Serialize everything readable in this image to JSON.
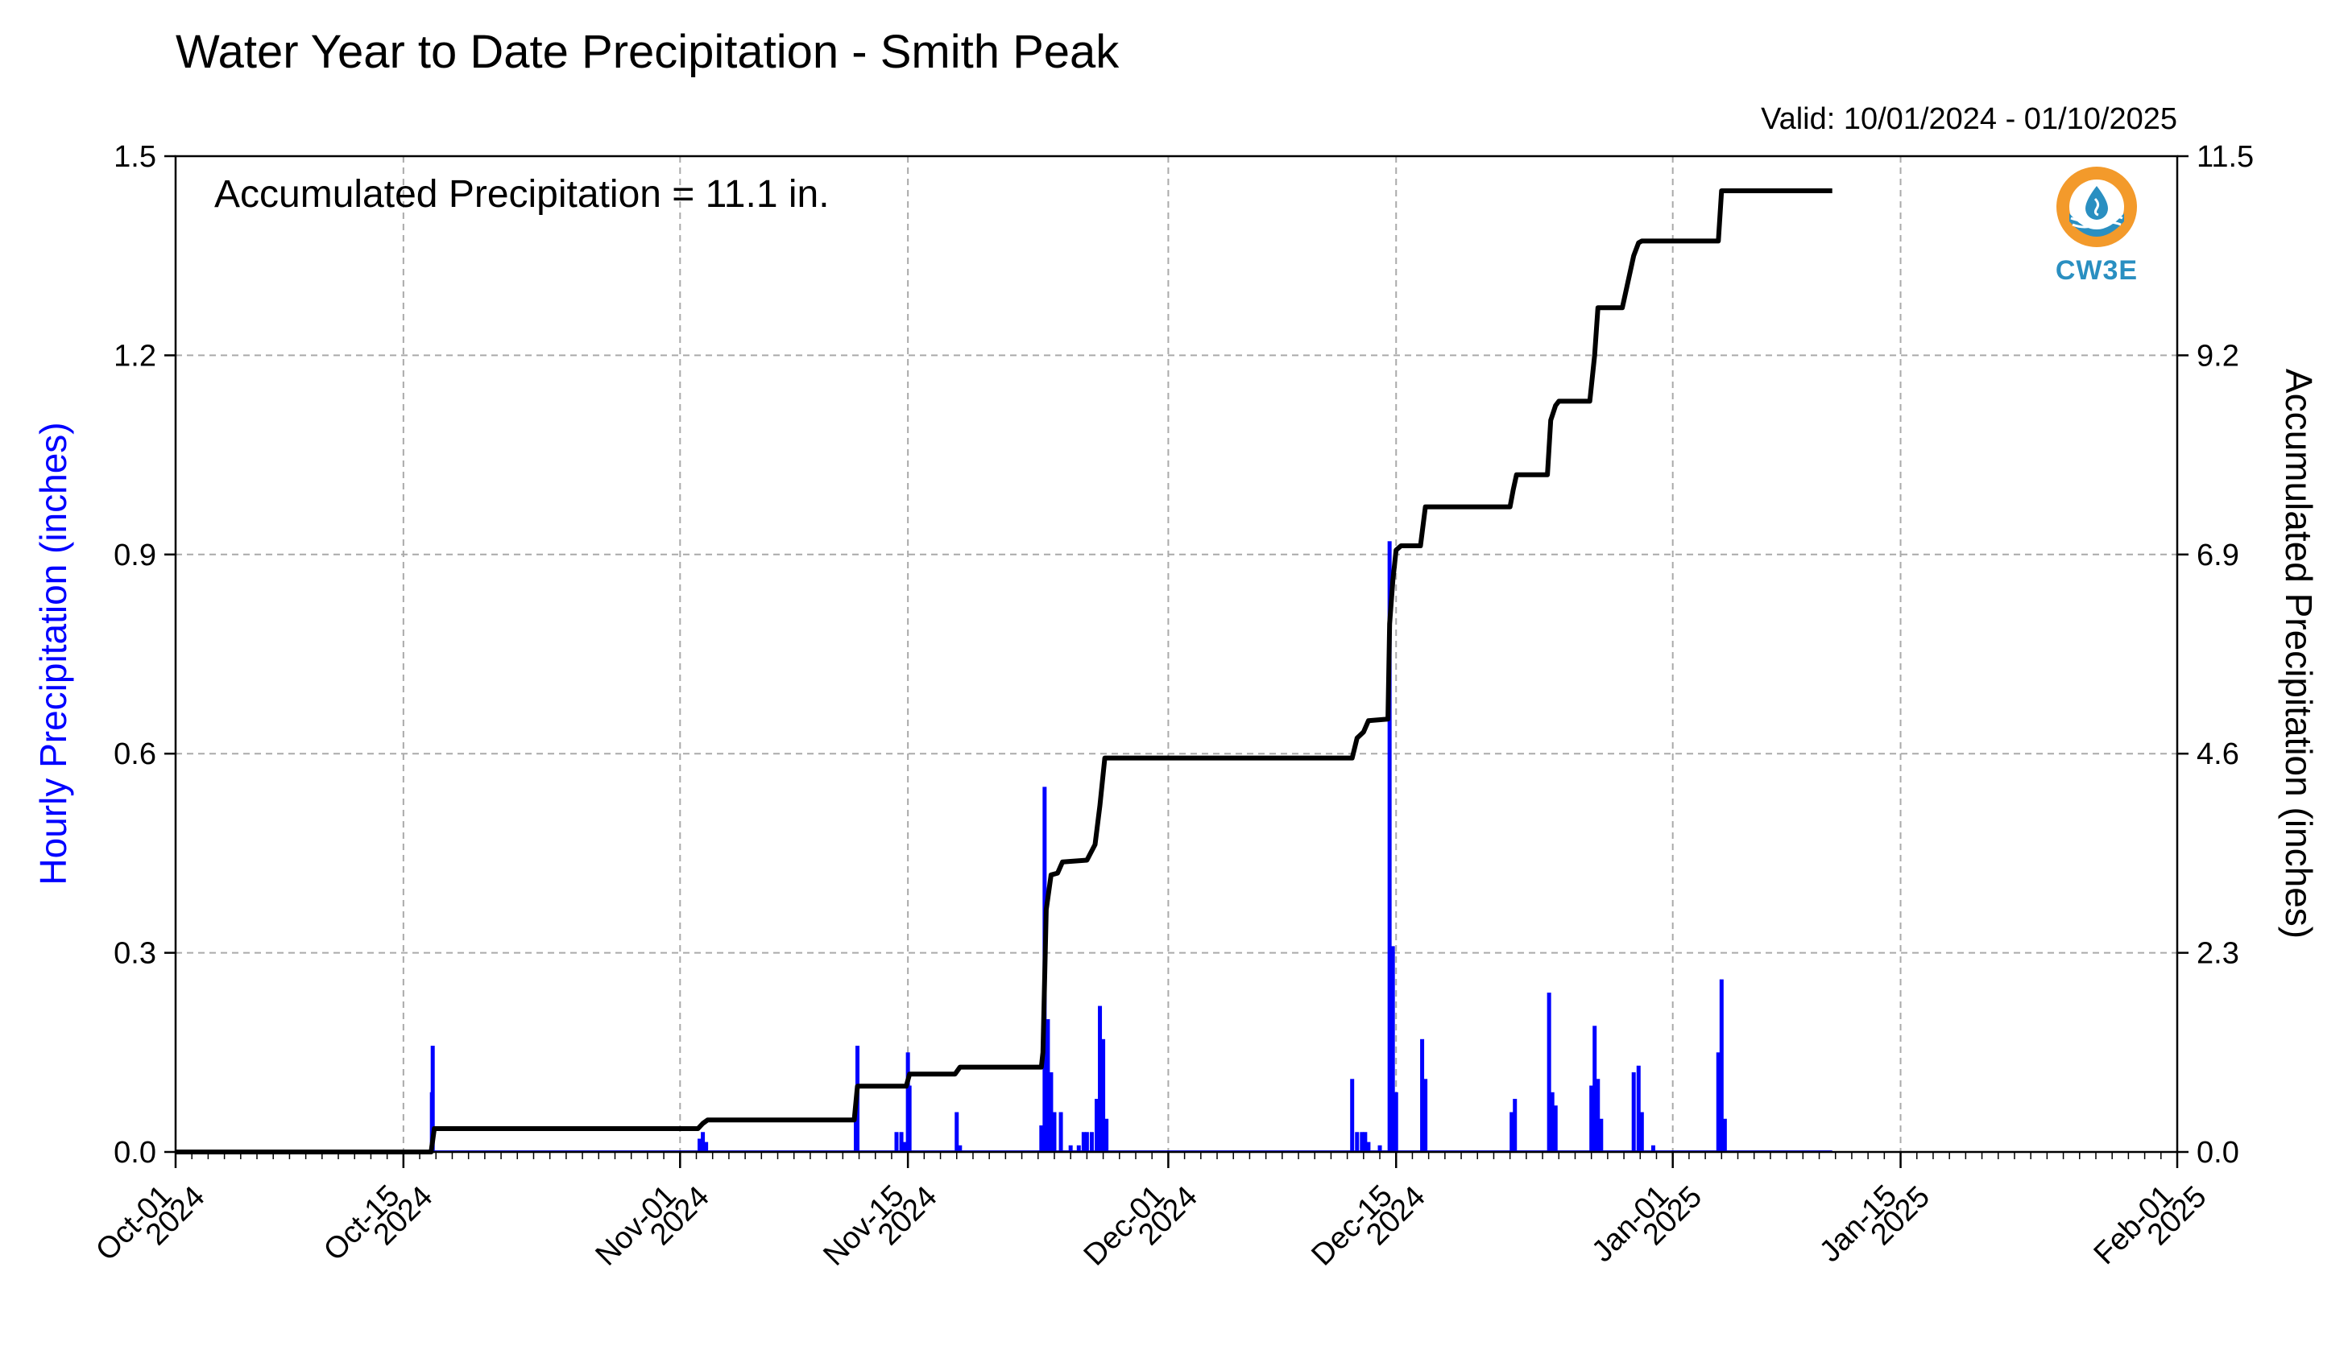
{
  "chart_data": {
    "type": "bar",
    "title": "Water Year to Date Precipitation - Smith Peak",
    "valid_text": "Valid: 10/01/2024 - 01/10/2025",
    "annotation": "Accumulated Precipitation = 11.1 in.",
    "ylabel_left": "Hourly Precipitation (inches)",
    "ylabel_right": "Accumulated Precipitation (inches)",
    "ylim_left": [
      0,
      1.5
    ],
    "ylim_right": [
      0,
      11.5
    ],
    "yticks_left": [
      "0.0",
      "0.3",
      "0.6",
      "0.9",
      "1.2",
      "1.5"
    ],
    "yticks_right": [
      "0.0",
      "2.3",
      "4.6",
      "6.9",
      "9.2",
      "11.5"
    ],
    "xlim_days": [
      0,
      123
    ],
    "xticks": [
      {
        "day": 0,
        "line1": "Oct-01",
        "line2": "2024"
      },
      {
        "day": 14,
        "line1": "Oct-15",
        "line2": "2024"
      },
      {
        "day": 31,
        "line1": "Nov-01",
        "line2": "2024"
      },
      {
        "day": 45,
        "line1": "Nov-15",
        "line2": "2024"
      },
      {
        "day": 61,
        "line1": "Dec-01",
        "line2": "2024"
      },
      {
        "day": 75,
        "line1": "Dec-15",
        "line2": "2024"
      },
      {
        "day": 92,
        "line1": "Jan-01",
        "line2": "2025"
      },
      {
        "day": 106,
        "line1": "Jan-15",
        "line2": "2025"
      },
      {
        "day": 123,
        "line1": "Feb-01",
        "line2": "2025"
      }
    ],
    "grid": true,
    "series": [
      {
        "kind": "bar",
        "color": "#0000ff",
        "points": [
          {
            "day": 15.8,
            "value": 0.16
          },
          {
            "day": 15.75,
            "value": 0.09
          },
          {
            "day": 32.2,
            "value": 0.02
          },
          {
            "day": 32.4,
            "value": 0.03
          },
          {
            "day": 32.6,
            "value": 0.015
          },
          {
            "day": 41.9,
            "value": 0.16
          },
          {
            "day": 41.8,
            "value": 0.08
          },
          {
            "day": 44.3,
            "value": 0.03
          },
          {
            "day": 44.6,
            "value": 0.03
          },
          {
            "day": 44.8,
            "value": 0.015
          },
          {
            "day": 45.0,
            "value": 0.15
          },
          {
            "day": 45.1,
            "value": 0.1
          },
          {
            "day": 48.0,
            "value": 0.06
          },
          {
            "day": 48.2,
            "value": 0.01
          },
          {
            "day": 53.2,
            "value": 0.04
          },
          {
            "day": 53.4,
            "value": 0.55
          },
          {
            "day": 53.6,
            "value": 0.2
          },
          {
            "day": 53.8,
            "value": 0.12
          },
          {
            "day": 54.0,
            "value": 0.06
          },
          {
            "day": 54.4,
            "value": 0.06
          },
          {
            "day": 55.0,
            "value": 0.01
          },
          {
            "day": 55.5,
            "value": 0.01
          },
          {
            "day": 55.8,
            "value": 0.03
          },
          {
            "day": 56.0,
            "value": 0.03
          },
          {
            "day": 56.3,
            "value": 0.03
          },
          {
            "day": 56.6,
            "value": 0.08
          },
          {
            "day": 56.8,
            "value": 0.22
          },
          {
            "day": 57.0,
            "value": 0.17
          },
          {
            "day": 57.2,
            "value": 0.05
          },
          {
            "day": 72.3,
            "value": 0.11
          },
          {
            "day": 72.6,
            "value": 0.03
          },
          {
            "day": 72.9,
            "value": 0.03
          },
          {
            "day": 73.1,
            "value": 0.03
          },
          {
            "day": 73.3,
            "value": 0.015
          },
          {
            "day": 74.0,
            "value": 0.01
          },
          {
            "day": 74.6,
            "value": 0.92
          },
          {
            "day": 74.8,
            "value": 0.31
          },
          {
            "day": 75.0,
            "value": 0.09
          },
          {
            "day": 76.6,
            "value": 0.17
          },
          {
            "day": 76.8,
            "value": 0.11
          },
          {
            "day": 82.1,
            "value": 0.06
          },
          {
            "day": 82.3,
            "value": 0.08
          },
          {
            "day": 84.4,
            "value": 0.24
          },
          {
            "day": 84.6,
            "value": 0.09
          },
          {
            "day": 84.8,
            "value": 0.07
          },
          {
            "day": 87.0,
            "value": 0.1
          },
          {
            "day": 87.2,
            "value": 0.19
          },
          {
            "day": 87.4,
            "value": 0.11
          },
          {
            "day": 87.6,
            "value": 0.05
          },
          {
            "day": 89.6,
            "value": 0.12
          },
          {
            "day": 89.9,
            "value": 0.13
          },
          {
            "day": 90.1,
            "value": 0.06
          },
          {
            "day": 90.8,
            "value": 0.01
          },
          {
            "day": 94.8,
            "value": 0.15
          },
          {
            "day": 95.0,
            "value": 0.26
          },
          {
            "day": 95.2,
            "value": 0.05
          }
        ]
      },
      {
        "kind": "line",
        "color": "#000000",
        "points": [
          {
            "day": 0,
            "value": 0
          },
          {
            "day": 15.7,
            "value": 0
          },
          {
            "day": 15.9,
            "value": 0.27
          },
          {
            "day": 32.1,
            "value": 0.27
          },
          {
            "day": 32.4,
            "value": 0.33
          },
          {
            "day": 32.7,
            "value": 0.37
          },
          {
            "day": 41.7,
            "value": 0.37
          },
          {
            "day": 41.9,
            "value": 0.76
          },
          {
            "day": 44.9,
            "value": 0.76
          },
          {
            "day": 45.1,
            "value": 0.9
          },
          {
            "day": 47.9,
            "value": 0.9
          },
          {
            "day": 48.2,
            "value": 0.98
          },
          {
            "day": 53.2,
            "value": 0.98
          },
          {
            "day": 53.3,
            "value": 1.15
          },
          {
            "day": 53.5,
            "value": 2.8
          },
          {
            "day": 53.8,
            "value": 3.2
          },
          {
            "day": 54.2,
            "value": 3.22
          },
          {
            "day": 54.5,
            "value": 3.35
          },
          {
            "day": 56.0,
            "value": 3.37
          },
          {
            "day": 56.5,
            "value": 3.55
          },
          {
            "day": 56.8,
            "value": 4.0
          },
          {
            "day": 57.1,
            "value": 4.55
          },
          {
            "day": 72.3,
            "value": 4.55
          },
          {
            "day": 72.6,
            "value": 4.78
          },
          {
            "day": 73.0,
            "value": 4.85
          },
          {
            "day": 73.3,
            "value": 4.98
          },
          {
            "day": 74.5,
            "value": 5.0
          },
          {
            "day": 74.6,
            "value": 6.1
          },
          {
            "day": 74.8,
            "value": 6.6
          },
          {
            "day": 75.0,
            "value": 6.95
          },
          {
            "day": 75.3,
            "value": 7.0
          },
          {
            "day": 76.5,
            "value": 7.0
          },
          {
            "day": 76.8,
            "value": 7.45
          },
          {
            "day": 82.0,
            "value": 7.45
          },
          {
            "day": 82.2,
            "value": 7.65
          },
          {
            "day": 82.4,
            "value": 7.82
          },
          {
            "day": 84.3,
            "value": 7.82
          },
          {
            "day": 84.5,
            "value": 8.45
          },
          {
            "day": 84.8,
            "value": 8.62
          },
          {
            "day": 85.0,
            "value": 8.67
          },
          {
            "day": 86.9,
            "value": 8.67
          },
          {
            "day": 87.2,
            "value": 9.2
          },
          {
            "day": 87.4,
            "value": 9.75
          },
          {
            "day": 88.9,
            "value": 9.75
          },
          {
            "day": 89.6,
            "value": 10.35
          },
          {
            "day": 89.9,
            "value": 10.5
          },
          {
            "day": 90.1,
            "value": 10.52
          },
          {
            "day": 94.8,
            "value": 10.52
          },
          {
            "day": 95.0,
            "value": 11.1
          },
          {
            "day": 101.8,
            "value": 11.1
          }
        ]
      }
    ]
  },
  "logo": {
    "text": "CW3E",
    "outer_color": "#f39a2b",
    "inner_color": "#2a8fc1"
  }
}
